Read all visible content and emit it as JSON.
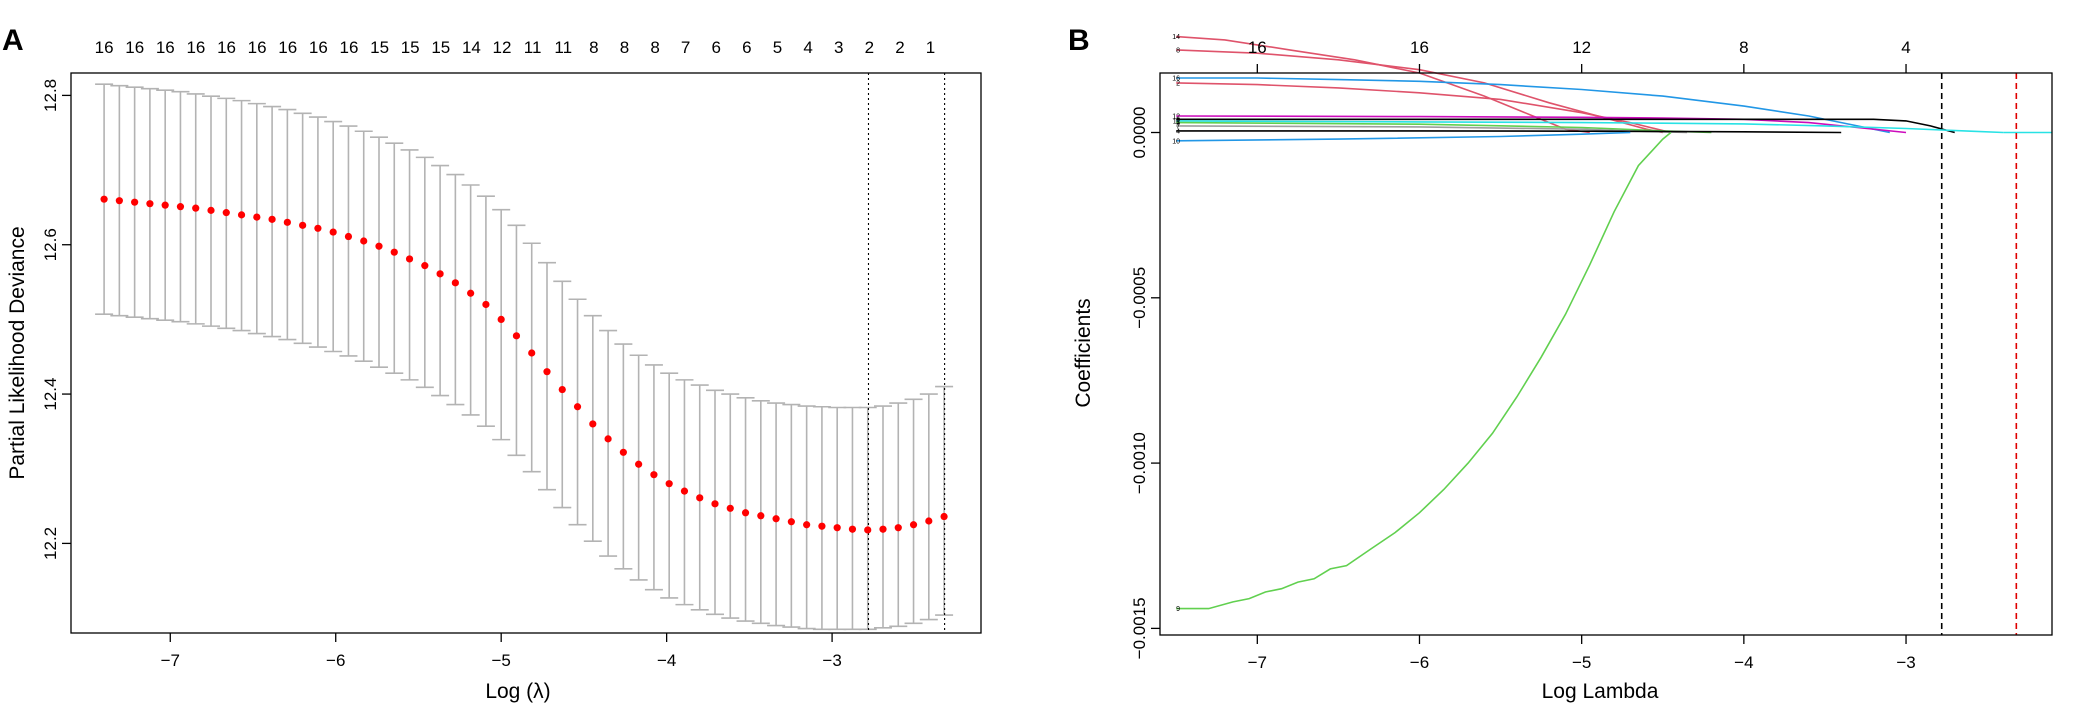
{
  "chart_data": [
    {
      "panel": "A",
      "type": "scatter",
      "xlabel": "Log (λ)",
      "ylabel": "Partial Likelihood Deviance",
      "xlim": [
        -7.6,
        -2.1
      ],
      "ylim": [
        12.08,
        12.83
      ],
      "x_ticks": [
        -7,
        -6,
        -5,
        -4,
        -3
      ],
      "y_ticks": [
        12.2,
        12.4,
        12.6,
        12.8
      ],
      "top_axis_labels": [
        "16",
        "16",
        "16",
        "16",
        "16",
        "16",
        "16",
        "16",
        "16",
        "15",
        "15",
        "15",
        "14",
        "12",
        "11",
        "11",
        "8",
        "8",
        "8",
        "7",
        "6",
        "6",
        "5",
        "4",
        "3",
        "2",
        "2",
        "1"
      ],
      "top_axis_positions": [
        -7.4,
        -7.215,
        -7.03,
        -6.845,
        -6.66,
        -6.475,
        -6.29,
        -6.105,
        -5.92,
        -5.735,
        -5.55,
        -5.365,
        -5.18,
        -4.995,
        -4.81,
        -4.625,
        -4.44,
        -4.255,
        -4.07,
        -3.885,
        -3.7,
        -3.515,
        -3.33,
        -3.145,
        -2.96,
        -2.775,
        -2.59,
        -2.405
      ],
      "vlines": [
        -2.78,
        -2.32
      ],
      "point_color": "#ff0000",
      "errorbar_color": "#b3b3b3",
      "series": [
        {
          "x": [
            -7.4,
            -7.3077,
            -7.2154,
            -7.1231,
            -7.0308,
            -6.9385,
            -6.8462,
            -6.7538,
            -6.6615,
            -6.5692,
            -6.4769,
            -6.3846,
            -6.2923,
            -6.2,
            -6.1077,
            -6.0154,
            -5.9231,
            -5.8308,
            -5.7385,
            -5.6462,
            -5.5538,
            -5.4615,
            -5.3692,
            -5.2769,
            -5.1846,
            -5.0923,
            -5.0,
            -4.9077,
            -4.8154,
            -4.7231,
            -4.6308,
            -4.5385,
            -4.4462,
            -4.3538,
            -4.2615,
            -4.1692,
            -4.0769,
            -3.9846,
            -3.8923,
            -3.8,
            -3.7077,
            -3.6154,
            -3.5231,
            -3.4308,
            -3.3385,
            -3.2462,
            -3.1538,
            -3.0615,
            -2.9692,
            -2.8769,
            -2.7846,
            -2.6923,
            -2.6,
            -2.5077,
            -2.4154,
            -2.3231
          ],
          "y": [
            12.661,
            12.659,
            12.657,
            12.655,
            12.653,
            12.651,
            12.649,
            12.646,
            12.643,
            12.64,
            12.637,
            12.634,
            12.63,
            12.626,
            12.622,
            12.617,
            12.611,
            12.605,
            12.598,
            12.59,
            12.581,
            12.572,
            12.561,
            12.549,
            12.535,
            12.52,
            12.5,
            12.478,
            12.455,
            12.43,
            12.406,
            12.383,
            12.36,
            12.34,
            12.322,
            12.306,
            12.292,
            12.28,
            12.27,
            12.261,
            12.253,
            12.247,
            12.241,
            12.237,
            12.233,
            12.229,
            12.225,
            12.223,
            12.221,
            12.219,
            12.218,
            12.219,
            12.221,
            12.225,
            12.23,
            12.236
          ],
          "ylow": [
            12.507,
            12.505,
            12.503,
            12.501,
            12.499,
            12.497,
            12.494,
            12.491,
            12.488,
            12.485,
            12.481,
            12.477,
            12.473,
            12.468,
            12.463,
            12.457,
            12.451,
            12.444,
            12.436,
            12.428,
            12.419,
            12.409,
            12.398,
            12.386,
            12.372,
            12.357,
            12.339,
            12.318,
            12.296,
            12.272,
            12.248,
            12.225,
            12.203,
            12.183,
            12.166,
            12.151,
            12.138,
            12.127,
            12.118,
            12.111,
            12.105,
            12.1,
            12.096,
            12.093,
            12.09,
            12.088,
            12.086,
            12.085,
            12.085,
            12.085,
            12.085,
            12.087,
            12.089,
            12.093,
            12.098,
            12.104
          ],
          "yhigh": [
            12.815,
            12.813,
            12.811,
            12.809,
            12.807,
            12.805,
            12.802,
            12.799,
            12.796,
            12.793,
            12.789,
            12.785,
            12.781,
            12.776,
            12.771,
            12.765,
            12.759,
            12.752,
            12.744,
            12.736,
            12.727,
            12.717,
            12.706,
            12.694,
            12.68,
            12.665,
            12.647,
            12.626,
            12.602,
            12.576,
            12.551,
            12.527,
            12.505,
            12.485,
            12.467,
            12.452,
            12.439,
            12.428,
            12.419,
            12.412,
            12.405,
            12.4,
            12.395,
            12.391,
            12.388,
            12.386,
            12.384,
            12.383,
            12.382,
            12.382,
            12.382,
            12.384,
            12.388,
            12.393,
            12.4,
            12.41
          ]
        }
      ]
    },
    {
      "panel": "B",
      "type": "line",
      "xlabel": "Log Lambda",
      "ylabel": "Coefficients",
      "xlim": [
        -7.6,
        -2.1
      ],
      "ylim": [
        -0.00152,
        0.00018
      ],
      "x_ticks": [
        -7,
        -6,
        -5,
        -4,
        -3
      ],
      "y_ticks": [
        0.0,
        -0.0005,
        -0.001,
        -0.0015
      ],
      "y_tick_labels": [
        "0.0000",
        "−0.0005",
        "−0.0010",
        "−0.0015"
      ],
      "top_axis_labels": [
        "16",
        "16",
        "12",
        "8",
        "4"
      ],
      "top_axis_positions": [
        -7.0,
        -6.0,
        -5.0,
        -4.0,
        -3.0
      ],
      "vlines": [
        {
          "x": -2.78,
          "color": "#000000"
        },
        {
          "x": -2.32,
          "color": "#df0000"
        }
      ],
      "series": [
        {
          "name": "14",
          "color": "#df536b",
          "x": [
            -7.5,
            -7.2,
            -6.8,
            -6.4,
            -6.0,
            -5.6,
            -5.3,
            -5.1,
            -4.95
          ],
          "y": [
            0.00029,
            0.00028,
            0.00025,
            0.00022,
            0.00018,
            0.00011,
            5e-05,
            1e-05,
            0.0
          ]
        },
        {
          "name": "8",
          "color": "#df536b",
          "x": [
            -7.5,
            -7.0,
            -6.5,
            -6.0,
            -5.6,
            -5.2,
            -4.9,
            -4.6,
            -4.5
          ],
          "y": [
            0.00025,
            0.00024,
            0.00022,
            0.00019,
            0.00015,
            9e-05,
            5e-05,
            1e-05,
            0.0
          ]
        },
        {
          "name": "16",
          "color": "#2297e6",
          "x": [
            -7.5,
            -7.0,
            -6.5,
            -6.0,
            -5.5,
            -5.0,
            -4.5,
            -4.0,
            -3.6,
            -3.3,
            -3.1
          ],
          "y": [
            0.000165,
            0.000165,
            0.00016,
            0.000155,
            0.000145,
            0.00013,
            0.00011,
            8e-05,
            5e-05,
            2e-05,
            0.0
          ]
        },
        {
          "name": "2",
          "color": "#df536b",
          "x": [
            -7.5,
            -7.0,
            -6.5,
            -6.0,
            -5.5,
            -5.0,
            -4.7,
            -4.45
          ],
          "y": [
            0.00015,
            0.000145,
            0.000135,
            0.00012,
            0.0001,
            6e-05,
            3e-05,
            0.0
          ]
        },
        {
          "name": "12",
          "color": "#cd0bbc",
          "x": [
            -7.5,
            -6.0,
            -5.0,
            -4.5,
            -4.0,
            -3.6,
            -3.3,
            -3.0
          ],
          "y": [
            5e-05,
            4.8e-05,
            4.6e-05,
            4.4e-05,
            4e-05,
            3e-05,
            1.5e-05,
            0.0
          ]
        },
        {
          "name": "3",
          "color": "#000000",
          "x": [
            -7.5,
            -6.0,
            -5.0,
            -4.5,
            -4.0,
            -3.5,
            -3.2,
            -3.0,
            -2.85,
            -2.7
          ],
          "y": [
            4e-05,
            4e-05,
            4e-05,
            4e-05,
            4e-05,
            4e-05,
            4e-05,
            3.5e-05,
            2e-05,
            0.0
          ]
        },
        {
          "name": "11",
          "color": "#28e2e5",
          "x": [
            -7.5,
            -6.0,
            -5.0,
            -4.5,
            -4.0,
            -3.5,
            -3.0,
            -2.6,
            -2.4
          ],
          "y": [
            3.5e-05,
            3.2e-05,
            3e-05,
            2.8e-05,
            2.6e-05,
            2e-05,
            1.2e-05,
            4e-06,
            0.0
          ]
        },
        {
          "name": "5",
          "color": "#61d04f",
          "x": [
            -7.5,
            -6.0,
            -5.0,
            -4.5,
            -4.2
          ],
          "y": [
            3e-05,
            2.5e-05,
            1.5e-05,
            5e-06,
            0.0
          ]
        },
        {
          "name": "7",
          "color": "#9e9e9e",
          "x": [
            -7.5,
            -6.0,
            -5.0,
            -4.6,
            -4.35
          ],
          "y": [
            2e-05,
            1.7e-05,
            1e-05,
            3e-06,
            0.0
          ]
        },
        {
          "name": "4",
          "color": "#000000",
          "x": [
            -7.5,
            -6.0,
            -5.0,
            -4.0,
            -3.4
          ],
          "y": [
            5e-06,
            5e-06,
            4e-06,
            2e-06,
            0.0
          ]
        },
        {
          "name": "10",
          "color": "#2297e6",
          "x": [
            -7.5,
            -6.5,
            -5.5,
            -5.0,
            -4.7
          ],
          "y": [
            -2.5e-05,
            -2e-05,
            -1.2e-05,
            -5e-06,
            0.0
          ]
        },
        {
          "name": "9",
          "color": "#61d04f",
          "x": [
            -7.5,
            -7.3,
            -7.15,
            -7.05,
            -6.95,
            -6.85,
            -6.75,
            -6.65,
            -6.55,
            -6.45,
            -6.3,
            -6.15,
            -6.0,
            -5.85,
            -5.7,
            -5.55,
            -5.4,
            -5.25,
            -5.1,
            -4.95,
            -4.8,
            -4.65,
            -4.5,
            -4.45
          ],
          "y": [
            -0.00144,
            -0.00144,
            -0.00142,
            -0.00141,
            -0.00139,
            -0.00138,
            -0.00136,
            -0.00135,
            -0.00132,
            -0.00131,
            -0.00126,
            -0.00121,
            -0.00115,
            -0.00108,
            -0.001,
            -0.00091,
            -0.0008,
            -0.00068,
            -0.00055,
            -0.0004,
            -0.00024,
            -0.0001,
            -2e-05,
            0.0
          ]
        }
      ]
    }
  ]
}
